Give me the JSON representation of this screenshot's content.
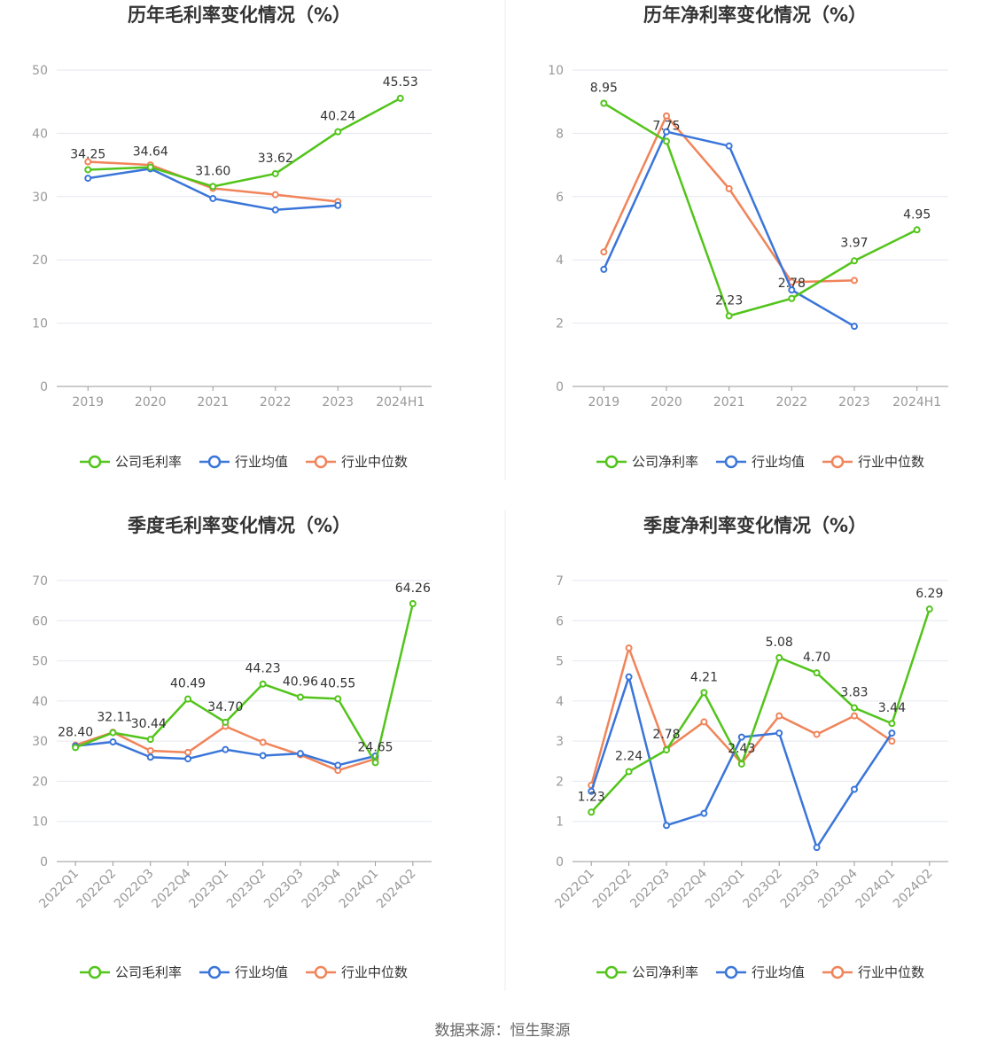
{
  "colors": {
    "company": "#52c41a",
    "avg": "#3a75d9",
    "median": "#f0845a",
    "grid": "#e5e7ef",
    "axis": "#999999"
  },
  "legend": {
    "avg": "行业均值",
    "median": "行业中位数"
  },
  "source": "数据来源：恒生聚源",
  "chart_data": [
    {
      "type": "line",
      "title": "历年毛利率变化情况（%）",
      "categories": [
        "2019",
        "2020",
        "2021",
        "2022",
        "2023",
        "2024H1"
      ],
      "ylim": [
        0,
        50
      ],
      "yticks": [
        0,
        10,
        20,
        30,
        40,
        50
      ],
      "series": [
        {
          "name": "公司毛利率",
          "key": "company",
          "values": [
            34.25,
            34.64,
            31.6,
            33.62,
            40.24,
            45.53
          ],
          "labels": [
            "34.25",
            "34.64",
            "31.60",
            "33.62",
            "40.24",
            "45.53"
          ]
        },
        {
          "name": "行业均值",
          "key": "avg",
          "values": [
            32.9,
            34.4,
            29.7,
            27.9,
            28.6,
            null
          ]
        },
        {
          "name": "行业中位数",
          "key": "median",
          "values": [
            35.5,
            35.0,
            31.3,
            30.3,
            29.2,
            null
          ]
        }
      ]
    },
    {
      "type": "line",
      "title": "历年净利率变化情况（%）",
      "categories": [
        "2019",
        "2020",
        "2021",
        "2022",
        "2023",
        "2024H1"
      ],
      "ylim": [
        0,
        10
      ],
      "yticks": [
        0,
        2,
        4,
        6,
        8,
        10
      ],
      "series": [
        {
          "name": "公司净利率",
          "key": "company",
          "values": [
            8.95,
            7.75,
            2.23,
            2.78,
            3.97,
            4.95
          ],
          "labels": [
            "8.95",
            "7.75",
            "2.23",
            "2.78",
            "3.97",
            "4.95"
          ]
        },
        {
          "name": "行业均值",
          "key": "avg",
          "values": [
            3.7,
            8.05,
            7.6,
            3.05,
            1.9,
            null
          ]
        },
        {
          "name": "行业中位数",
          "key": "median",
          "values": [
            4.25,
            8.55,
            6.25,
            3.3,
            3.35,
            null
          ]
        }
      ]
    },
    {
      "type": "line",
      "title": "季度毛利率变化情况（%）",
      "categories": [
        "2022Q1",
        "2022Q2",
        "2022Q3",
        "2022Q4",
        "2023Q1",
        "2023Q2",
        "2023Q3",
        "2023Q4",
        "2024Q1",
        "2024Q2"
      ],
      "ylim": [
        0,
        70
      ],
      "yticks": [
        0,
        10,
        20,
        30,
        40,
        50,
        60,
        70
      ],
      "series": [
        {
          "name": "公司毛利率",
          "key": "company",
          "values": [
            28.4,
            32.11,
            30.44,
            40.49,
            34.7,
            44.23,
            40.96,
            40.55,
            24.65,
            64.26
          ],
          "labels": [
            "28.40",
            "32.11",
            "30.44",
            "40.49",
            "34.70",
            "44.23",
            "40.96",
            "40.55",
            "24.65",
            "64.26"
          ]
        },
        {
          "name": "行业均值",
          "key": "avg",
          "values": [
            28.8,
            29.8,
            26.0,
            25.6,
            27.9,
            26.4,
            26.9,
            24.0,
            26.3,
            null
          ]
        },
        {
          "name": "行业中位数",
          "key": "median",
          "values": [
            29.0,
            32.2,
            27.6,
            27.2,
            33.7,
            29.7,
            26.6,
            22.7,
            25.6,
            null
          ]
        }
      ]
    },
    {
      "type": "line",
      "title": "季度净利率变化情况（%）",
      "categories": [
        "2022Q1",
        "2022Q2",
        "2022Q3",
        "2022Q4",
        "2023Q1",
        "2023Q2",
        "2023Q3",
        "2023Q4",
        "2024Q1",
        "2024Q2"
      ],
      "ylim": [
        0,
        7
      ],
      "yticks": [
        0,
        1,
        2,
        3,
        4,
        5,
        6,
        7
      ],
      "series": [
        {
          "name": "公司净利率",
          "key": "company",
          "values": [
            1.23,
            2.24,
            2.78,
            4.21,
            2.43,
            5.08,
            4.7,
            3.83,
            3.44,
            6.29
          ],
          "labels": [
            "1.23",
            "2.24",
            "2.78",
            "4.21",
            "2.43",
            "5.08",
            "4.70",
            "3.83",
            "3.44",
            "6.29"
          ]
        },
        {
          "name": "行业均值",
          "key": "avg",
          "values": [
            1.75,
            4.6,
            0.9,
            1.2,
            3.1,
            3.2,
            0.35,
            1.8,
            3.2,
            null
          ]
        },
        {
          "name": "行业中位数",
          "key": "median",
          "values": [
            1.9,
            5.32,
            2.8,
            3.48,
            2.45,
            3.63,
            3.17,
            3.63,
            3.0,
            null
          ]
        }
      ]
    }
  ]
}
